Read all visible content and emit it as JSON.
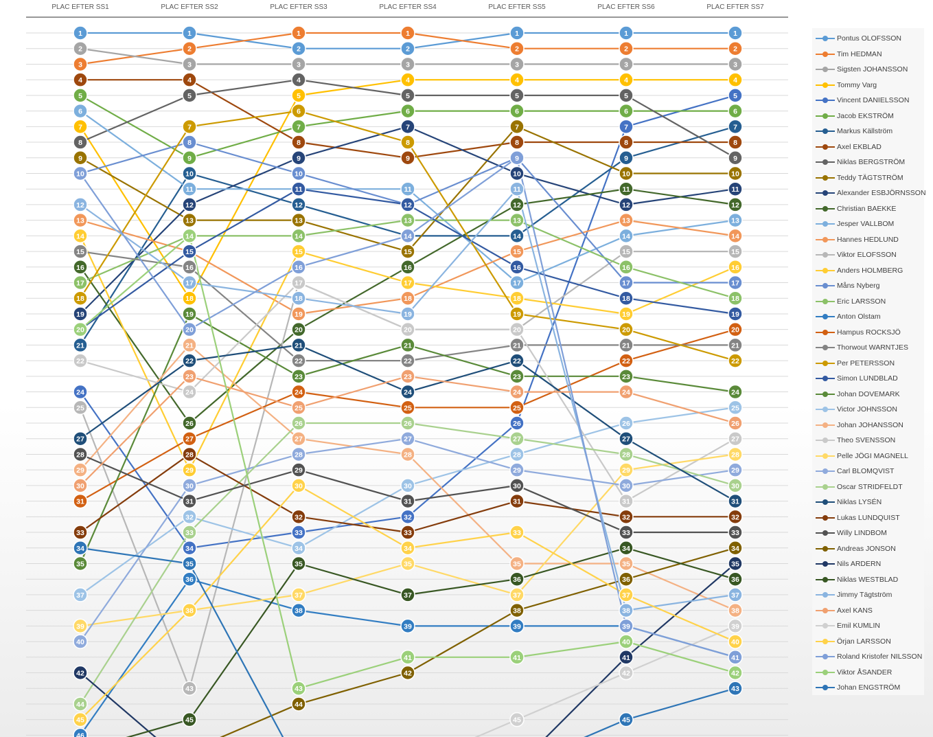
{
  "chart_data": {
    "type": "line",
    "categories": [
      "PLAC EFTER SS1",
      "PLAC EFTER SS2",
      "PLAC EFTER SS3",
      "PLAC EFTER SS4",
      "PLAC EFTER SS5",
      "PLAC EFTER SS6",
      "PLAC EFTER SS7"
    ],
    "y_axis": {
      "reversed": true,
      "visible_range": [
        1,
        45
      ]
    },
    "grid": true,
    "legend_position": "right",
    "series": [
      {
        "name": "Pontus OLOFSSON",
        "color": "#5b9bd5",
        "values": [
          1,
          1,
          2,
          2,
          1,
          1,
          1
        ]
      },
      {
        "name": "Tim HEDMAN",
        "color": "#ed7d31",
        "values": [
          3,
          2,
          1,
          1,
          2,
          2,
          2
        ]
      },
      {
        "name": "Sigsten JOHANSSON",
        "color": "#a5a5a5",
        "values": [
          2,
          3,
          3,
          3,
          3,
          3,
          3
        ]
      },
      {
        "name": "Tommy Varg",
        "color": "#ffc000",
        "values": [
          7,
          18,
          5,
          4,
          4,
          4,
          4
        ]
      },
      {
        "name": "Vincent DANIELSSON",
        "color": "#4472c4",
        "values": [
          24,
          34,
          33,
          32,
          26,
          7,
          5
        ]
      },
      {
        "name": "Jacob EKSTRÖM",
        "color": "#70ad47",
        "values": [
          5,
          9,
          7,
          6,
          6,
          6,
          6
        ]
      },
      {
        "name": "Markus Källström",
        "color": "#255e91",
        "values": [
          21,
          10,
          12,
          14,
          14,
          9,
          7
        ]
      },
      {
        "name": "Axel EKBLAD",
        "color": "#9e480e",
        "values": [
          4,
          4,
          8,
          9,
          8,
          8,
          8
        ]
      },
      {
        "name": "Niklas BERGSTRÖM",
        "color": "#636363",
        "values": [
          8,
          5,
          4,
          5,
          5,
          5,
          9
        ]
      },
      {
        "name": "Teddy TÄGTSTRÖM",
        "color": "#997300",
        "values": [
          9,
          13,
          13,
          15,
          7,
          10,
          10
        ]
      },
      {
        "name": "Alexander ESBJÖRNSSON",
        "color": "#264478",
        "values": [
          19,
          12,
          9,
          7,
          10,
          12,
          11
        ]
      },
      {
        "name": "Christian BAEKKE",
        "color": "#43682b",
        "values": [
          16,
          26,
          20,
          16,
          12,
          11,
          12
        ]
      },
      {
        "name": "Jesper VALLBOM",
        "color": "#7cafdd",
        "values": [
          6,
          11,
          11,
          11,
          17,
          14,
          13
        ]
      },
      {
        "name": "Hannes HEDLUND",
        "color": "#f1975a",
        "values": [
          13,
          15,
          19,
          18,
          15,
          13,
          14
        ]
      },
      {
        "name": "Viktor ELOFSSON",
        "color": "#b7b7b7",
        "values": [
          25,
          43,
          17,
          20,
          20,
          15,
          15
        ]
      },
      {
        "name": "Anders HOLMBERG",
        "color": "#ffcd33",
        "values": [
          14,
          29,
          15,
          17,
          18,
          19,
          16
        ]
      },
      {
        "name": "Måns Nyberg",
        "color": "#698ed0",
        "values": [
          10,
          8,
          10,
          12,
          9,
          17,
          17
        ]
      },
      {
        "name": "Eric LARSSON",
        "color": "#8cc168",
        "values": [
          17,
          14,
          14,
          13,
          13,
          16,
          18
        ]
      },
      {
        "name": "Anton Olstam",
        "color": "#327dc2",
        "values": [
          46,
          36,
          38,
          39,
          39,
          39,
          41
        ]
      },
      {
        "name": "Hampus ROCKSJÖ",
        "color": "#d26012",
        "values": [
          31,
          27,
          24,
          25,
          25,
          22,
          20
        ]
      },
      {
        "name": "Thorwout WARNTJES",
        "color": "#848484",
        "values": [
          15,
          16,
          22,
          22,
          21,
          21,
          21
        ]
      },
      {
        "name": "Per PETERSSON",
        "color": "#cc9a00",
        "values": [
          18,
          7,
          6,
          8,
          19,
          20,
          22
        ]
      },
      {
        "name": "Simon LUNDBLAD",
        "color": "#335aa1",
        "values": [
          20,
          15,
          11,
          12,
          16,
          18,
          19
        ]
      },
      {
        "name": "Johan DOVEMARK",
        "color": "#5a8a39",
        "values": [
          35,
          19,
          23,
          21,
          23,
          23,
          24
        ]
      },
      {
        "name": "Victor JOHNSSON",
        "color": "#9dc3e6",
        "values": [
          37,
          32,
          34,
          30,
          28,
          26,
          25
        ]
      },
      {
        "name": "Johan JOHANSSON",
        "color": "#f4b183",
        "values": [
          29,
          21,
          27,
          28,
          35,
          35,
          38
        ]
      },
      {
        "name": "Theo SVENSSON",
        "color": "#c9c9c9",
        "values": [
          22,
          24,
          17,
          20,
          20,
          31,
          27
        ]
      },
      {
        "name": "Pelle JÖGI MAGNELL",
        "color": "#ffd966",
        "values": [
          39,
          38,
          37,
          35,
          37,
          29,
          28
        ]
      },
      {
        "name": "Carl BLOMQVIST",
        "color": "#8faadc",
        "values": [
          40,
          30,
          28,
          27,
          29,
          30,
          29
        ]
      },
      {
        "name": "Oscar STRIDFELDT",
        "color": "#a9d18e",
        "values": [
          44,
          33,
          26,
          26,
          27,
          28,
          30
        ]
      },
      {
        "name": "Niklas LYSÉN",
        "color": "#1f4e79",
        "values": [
          27,
          22,
          21,
          24,
          22,
          27,
          31
        ]
      },
      {
        "name": "Lukas LUNDQUIST",
        "color": "#843c0c",
        "values": [
          33,
          28,
          32,
          33,
          31,
          32,
          32
        ]
      },
      {
        "name": "Willy LINDBOM",
        "color": "#525252",
        "values": [
          28,
          31,
          29,
          31,
          30,
          33,
          33
        ]
      },
      {
        "name": "Andreas JONSON",
        "color": "#7f6000",
        "values": [
          48,
          47,
          44,
          42,
          38,
          36,
          34
        ]
      },
      {
        "name": "Nils ARDERN",
        "color": "#203864",
        "values": [
          42,
          48,
          48,
          48,
          48,
          41,
          35
        ]
      },
      {
        "name": "Niklas WESTBLAD",
        "color": "#385723",
        "values": [
          47,
          45,
          35,
          37,
          36,
          34,
          36
        ]
      },
      {
        "name": "Jimmy Tägtström",
        "color": "#8ab4e0",
        "values": [
          12,
          17,
          18,
          19,
          11,
          38,
          37
        ]
      },
      {
        "name": "Axel KANS",
        "color": "#f0a070",
        "values": [
          30,
          23,
          25,
          23,
          24,
          24,
          26
        ]
      },
      {
        "name": "Emil KUMLIN",
        "color": "#d0d0d0",
        "values": [
          48,
          48,
          48,
          48,
          45,
          42,
          39
        ]
      },
      {
        "name": "Örjan LARSSON",
        "color": "#ffd24a",
        "values": [
          45,
          38,
          30,
          34,
          33,
          37,
          40
        ]
      },
      {
        "name": "Roland Kristofer NILSSON",
        "color": "#7f9fd8",
        "values": [
          10,
          20,
          16,
          14,
          9,
          39,
          41
        ]
      },
      {
        "name": "Viktor ÅSANDER",
        "color": "#9bd07a",
        "values": [
          20,
          14,
          43,
          41,
          41,
          40,
          42
        ]
      },
      {
        "name": "Johan ENGSTRÖM",
        "color": "#2e75b6",
        "values": [
          34,
          35,
          48,
          48,
          48,
          45,
          43
        ]
      }
    ]
  }
}
